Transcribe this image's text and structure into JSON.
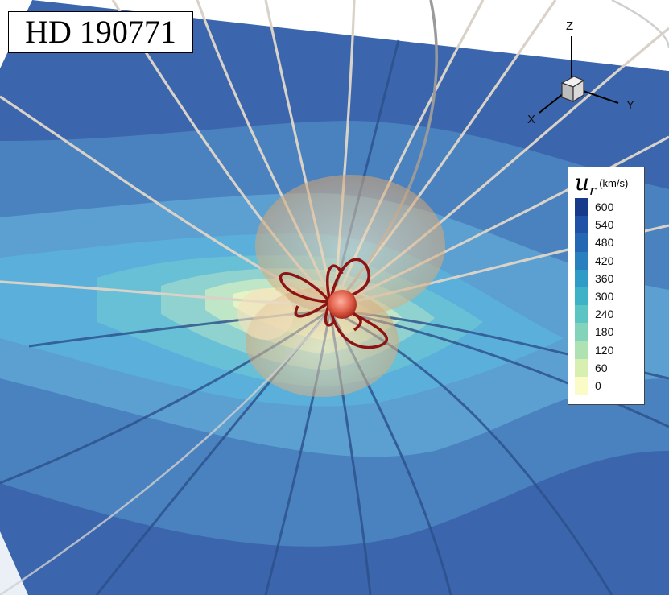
{
  "title": "HD 190771",
  "axes": {
    "z": "Z",
    "x": "X",
    "y": "Y"
  },
  "legend": {
    "symbol": "u",
    "subscript": "r",
    "unit": "(km/s)",
    "entries": [
      {
        "value": "600",
        "color": "#173a8a"
      },
      {
        "value": "540",
        "color": "#1f52a6"
      },
      {
        "value": "480",
        "color": "#2468b4"
      },
      {
        "value": "420",
        "color": "#2881be"
      },
      {
        "value": "360",
        "color": "#2e9cc7"
      },
      {
        "value": "300",
        "color": "#3eb3c8"
      },
      {
        "value": "240",
        "color": "#5cc4c3"
      },
      {
        "value": "180",
        "color": "#82d3b9"
      },
      {
        "value": "120",
        "color": "#aee2b2"
      },
      {
        "value": "60",
        "color": "#d8efb2"
      },
      {
        "value": "0",
        "color": "#fbfbc8"
      }
    ]
  }
}
